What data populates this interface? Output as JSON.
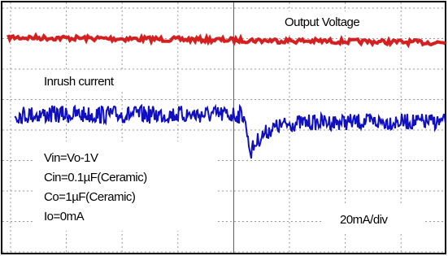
{
  "trace_labels": {
    "output": "Output Voltage",
    "current": "Inrush current"
  },
  "conditions": [
    "Vin=Vo-1V",
    "Cin=0.1µF(Ceramic)",
    "Co=1µF(Ceramic)",
    "Io=0mA"
  ],
  "scale": "20mA/div"
}
